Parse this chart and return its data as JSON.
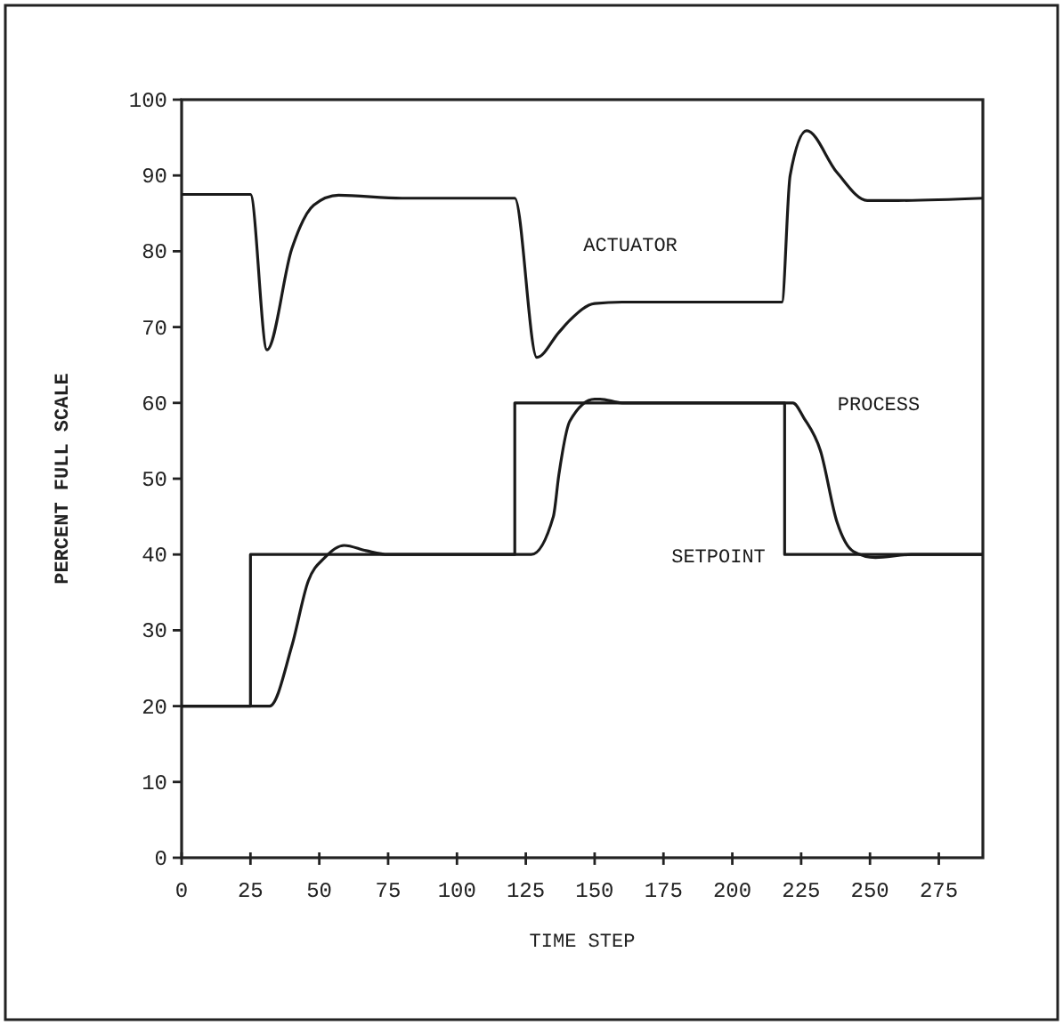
{
  "chart_data": {
    "type": "line",
    "xlabel": "TIME STEP",
    "ylabel": "PERCENT FULL SCALE",
    "xlim": [
      0,
      291
    ],
    "ylim": [
      0,
      100
    ],
    "xticks": [
      0,
      25,
      50,
      75,
      100,
      125,
      150,
      175,
      200,
      225,
      250,
      275
    ],
    "yticks": [
      0,
      10,
      20,
      30,
      40,
      50,
      60,
      70,
      80,
      90,
      100
    ],
    "grid": false,
    "marker": "none",
    "line_style": "solid",
    "series": [
      {
        "name": "ACTUATOR",
        "color": "#1a1a1a",
        "x": [
          0,
          25,
          31,
          40,
          48,
          57,
          80,
          121,
          129,
          137,
          141,
          150,
          160,
          218,
          221,
          227,
          238,
          249,
          260,
          291
        ],
        "values": [
          87.5,
          87.5,
          67,
          80.3,
          86.1,
          87.4,
          87,
          87,
          66,
          69.3,
          70.9,
          73.1,
          73.3,
          73.3,
          90,
          95.9,
          90.4,
          86.7,
          86.7,
          87
        ]
      },
      {
        "name": "SETPOINT",
        "color": "#1a1a1a",
        "x": [
          0,
          25,
          25,
          121,
          121,
          219,
          219,
          291
        ],
        "values": [
          20,
          20,
          40,
          40,
          60,
          60,
          40,
          40
        ]
      },
      {
        "name": "PROCESS",
        "color": "#1a1a1a",
        "x": [
          0,
          32,
          40,
          46,
          52,
          59,
          67,
          75,
          127,
          135,
          137,
          141,
          150,
          152,
          160,
          222,
          226,
          232,
          238,
          244,
          252,
          265,
          291
        ],
        "values": [
          20,
          20,
          27.9,
          36.5,
          39.6,
          41.2,
          40.5,
          40,
          40,
          45,
          50.5,
          57.6,
          60.5,
          60.5,
          60,
          60,
          58,
          53.7,
          44.3,
          40.4,
          39.6,
          40,
          40
        ]
      }
    ]
  }
}
